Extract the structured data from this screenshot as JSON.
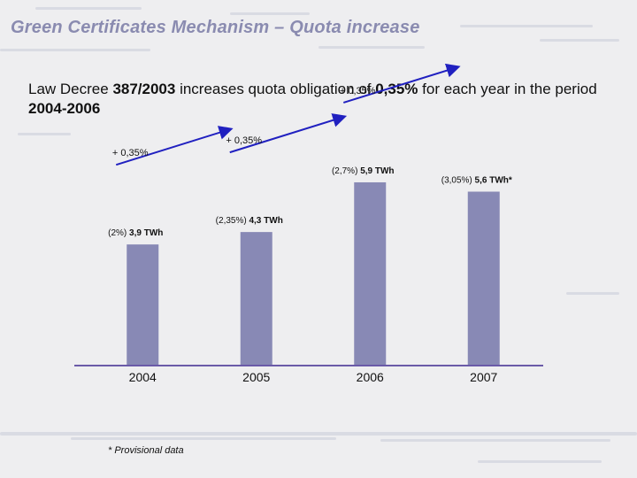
{
  "slide": {
    "title": "Green Certificates Mechanism – Quota increase",
    "subtitle": {
      "p1": "Law Decree ",
      "b1": "387/2003",
      "p2": " increases quota obligation of ",
      "b2": "0,35%",
      "p3": " for each year in the period ",
      "b3": "2004-2006"
    },
    "footnote": "* Provisional data"
  },
  "colors": {
    "bar": "#8889b5",
    "arrow": "#2020c0",
    "axis": "#6a5aa8",
    "title": "#8a8bb0"
  },
  "chart_data": {
    "type": "bar",
    "categories": [
      "2004",
      "2005",
      "2006",
      "2007"
    ],
    "values": [
      3.9,
      4.3,
      5.9,
      5.6
    ],
    "unit": "TWh",
    "data_labels": [
      {
        "pct": "(2%)",
        "value": "3,9 TWh"
      },
      {
        "pct": "(2,35%)",
        "value": "4,3 TWh"
      },
      {
        "pct": "(2,7%)",
        "value": "5,9 TWh"
      },
      {
        "pct": "(3,05%)",
        "value": "5,6 TWh*"
      }
    ],
    "increments": [
      "+ 0,35%",
      "+ 0,35%",
      "+ 0,35%"
    ],
    "ylim": [
      0,
      8.55
    ]
  }
}
